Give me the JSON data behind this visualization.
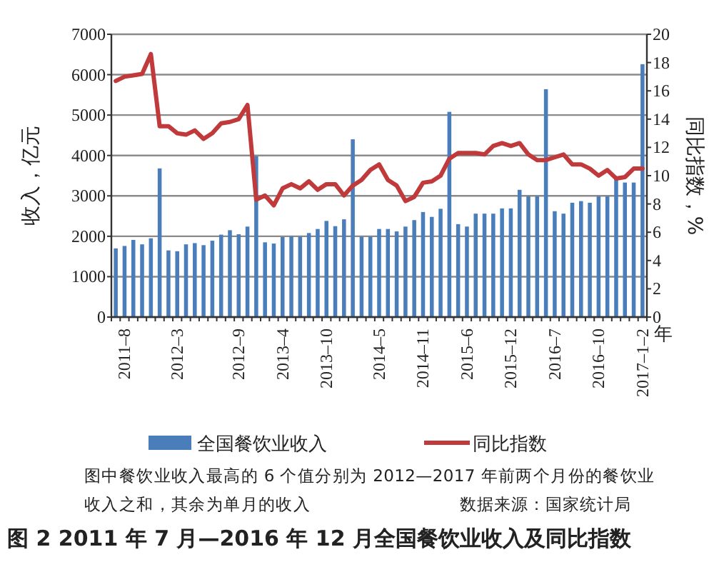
{
  "chart_data": {
    "type": "bar",
    "title": "图 2 2011 年 7 月—2016 年 12 月全国餐饮业收入及同比指数",
    "xlabel": "年",
    "ylabel": "收入，亿元",
    "y2label": "同比指数，%",
    "categories": [
      null,
      "2011–8",
      null,
      null,
      null,
      null,
      null,
      "2012–3",
      null,
      null,
      null,
      null,
      null,
      null,
      "2012–9",
      null,
      null,
      null,
      null,
      "2013–4",
      null,
      null,
      null,
      null,
      "2013–10",
      null,
      null,
      null,
      null,
      null,
      "2014–5",
      null,
      null,
      null,
      null,
      "2014–11",
      null,
      null,
      null,
      null,
      "2015–6",
      null,
      null,
      null,
      null,
      "2015–12",
      null,
      null,
      null,
      null,
      "2016–7",
      null,
      null,
      null,
      null,
      "2016–10",
      null,
      null,
      null,
      null,
      "2017–1–2"
    ],
    "series": [
      {
        "name": "全国餐饮业收入",
        "color": "#4a7ebb",
        "values": [
          1700,
          1760,
          1910,
          1800,
          1950,
          3680,
          1650,
          1630,
          1800,
          1830,
          1780,
          1890,
          2040,
          2150,
          2050,
          2240,
          3980,
          1850,
          1820,
          1980,
          2000,
          1990,
          2080,
          2180,
          2380,
          2250,
          2420,
          4400,
          1990,
          1990,
          2180,
          2180,
          2120,
          2240,
          2400,
          2600,
          2480,
          2680,
          5080,
          2300,
          2240,
          2560,
          2560,
          2560,
          2690,
          2690,
          3150,
          2990,
          2990,
          5640,
          2620,
          2560,
          2830,
          2870,
          2830,
          2990,
          2990,
          3450,
          3330,
          3330,
          6260
        ]
      },
      {
        "name": "同比指数",
        "type": "line",
        "axis": "y2",
        "color": "#c0393b",
        "values": [
          16.7,
          17.0,
          17.1,
          17.2,
          18.6,
          13.5,
          13.5,
          13.0,
          12.9,
          13.2,
          12.6,
          13.0,
          13.7,
          13.8,
          14.0,
          15.0,
          8.3,
          8.6,
          7.9,
          9.1,
          9.4,
          9.1,
          9.6,
          9.0,
          9.4,
          9.4,
          8.6,
          9.3,
          9.7,
          10.4,
          10.8,
          9.7,
          9.3,
          8.2,
          8.5,
          9.5,
          9.6,
          10.0,
          11.2,
          11.6,
          11.6,
          11.6,
          11.5,
          12.1,
          12.3,
          12.1,
          12.3,
          11.5,
          11.1,
          11.1,
          11.3,
          11.5,
          10.8,
          10.8,
          10.5,
          10.0,
          10.4,
          9.8,
          9.9,
          10.5,
          10.5
        ]
      }
    ],
    "ylim": [
      0,
      7000
    ],
    "yticks": [
      0,
      1000,
      2000,
      3000,
      4000,
      5000,
      6000,
      7000
    ],
    "y2lim": [
      0,
      20
    ],
    "y2ticks": [
      0,
      2,
      4,
      6,
      8,
      10,
      12,
      14,
      16,
      18,
      20
    ],
    "grid": "y",
    "legend": "bottom",
    "annotations": [
      "图中餐饮业收入最高的 6 个值分别为 2012—2017 年前两个月份的餐饮业收入之和，其余为单月的收入",
      "数据来源：国家统计局"
    ]
  }
}
